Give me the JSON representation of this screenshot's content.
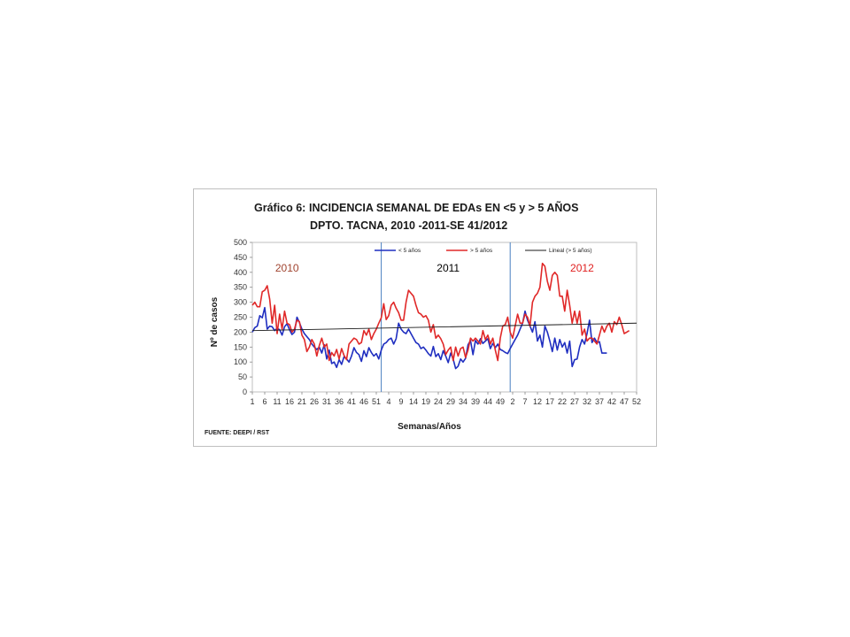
{
  "chart_data": {
    "type": "line",
    "title_prefix": "Gráfico 6:",
    "title": "INCIDENCIA SEMANAL DE EDAs EN <5 y > 5 AÑOS",
    "subtitle": "DPTO. TACNA, 2010 -2011-SE 41/2012",
    "xlabel": "Semanas/Años",
    "ylabel": "Nº de casos",
    "ylim": [
      0,
      500
    ],
    "yticks": [
      0,
      50,
      100,
      150,
      200,
      250,
      300,
      350,
      400,
      450,
      500
    ],
    "x_tick_labels": [
      "1",
      "6",
      "11",
      "16",
      "21",
      "26",
      "31",
      "36",
      "41",
      "46",
      "51",
      "4",
      "9",
      "14",
      "19",
      "24",
      "29",
      "34",
      "39",
      "44",
      "49",
      "2",
      "7",
      "12",
      "17",
      "22",
      "27",
      "32",
      "37",
      "42",
      "47",
      "52"
    ],
    "total_slots": 156,
    "year_separators_at": [
      52,
      104
    ],
    "year_labels": [
      {
        "text": "2010",
        "color": "#a0432f",
        "at_slot": 14
      },
      {
        "text": "2011",
        "color": "#000000",
        "at_slot": 79
      },
      {
        "text": "2012",
        "color": "#e02020",
        "at_slot": 133
      }
    ],
    "legend_position": "top",
    "series": [
      {
        "name": "< 5 años",
        "color": "#1f2ec0",
        "values": [
          200,
          215,
          220,
          255,
          248,
          282,
          210,
          220,
          218,
          205,
          213,
          208,
          190,
          218,
          228,
          208,
          192,
          200,
          250,
          232,
          210,
          195,
          185,
          175,
          160,
          150,
          142,
          150,
          130,
          158,
          110,
          140,
          95,
          100,
          82,
          108,
          92,
          118,
          110,
          100,
          120,
          148,
          132,
          125,
          102,
          138,
          118,
          148,
          132,
          120,
          128,
          110,
          140,
          160,
          165,
          175,
          180,
          160,
          178,
          230,
          210,
          200,
          195,
          210,
          195,
          180,
          165,
          160,
          145,
          150,
          140,
          128,
          120,
          152,
          118,
          128,
          108,
          138,
          120,
          98,
          130,
          110,
          78,
          86,
          110,
          100,
          112,
          158,
          172,
          125,
          172,
          160,
          178,
          162,
          170,
          178,
          145,
          162,
          148,
          160,
          142,
          138,
          132,
          128,
          145,
          160,
          175,
          190,
          210,
          230,
          270,
          240,
          220,
          200,
          235,
          170,
          190,
          150,
          220,
          200,
          170,
          135,
          180,
          140,
          175,
          150,
          165,
          130,
          170,
          85,
          108,
          110,
          150,
          175,
          160,
          195,
          240,
          165,
          180,
          165,
          168,
          130,
          130,
          130
        ]
      },
      {
        "name": "> 5 años",
        "color": "#e02828",
        "values": [
          290,
          300,
          285,
          285,
          335,
          340,
          355,
          310,
          230,
          290,
          195,
          260,
          210,
          270,
          230,
          225,
          200,
          210,
          240,
          235,
          190,
          175,
          135,
          150,
          175,
          160,
          120,
          155,
          180,
          150,
          160,
          105,
          132,
          120,
          142,
          110,
          145,
          122,
          108,
          160,
          170,
          180,
          175,
          160,
          165,
          205,
          190,
          210,
          175,
          195,
          210,
          230,
          248,
          295,
          242,
          255,
          290,
          300,
          280,
          265,
          240,
          240,
          300,
          340,
          330,
          320,
          290,
          265,
          260,
          250,
          255,
          240,
          200,
          225,
          180,
          190,
          178,
          160,
          125,
          140,
          150,
          105,
          150,
          120,
          145,
          150,
          115,
          140,
          180,
          170,
          180,
          170,
          160,
          205,
          175,
          190,
          160,
          180,
          140,
          105,
          180,
          220,
          225,
          250,
          200,
          180,
          220,
          260,
          230,
          230,
          260,
          250,
          220,
          300,
          320,
          330,
          350,
          430,
          420,
          370,
          340,
          390,
          400,
          390,
          320,
          320,
          270,
          340,
          290,
          230,
          270,
          230,
          270,
          190,
          210,
          170,
          180,
          180,
          170,
          160,
          190,
          220,
          200,
          220,
          230,
          200,
          235,
          225,
          250,
          225,
          195,
          200,
          205
        ]
      },
      {
        "name": "Lineal (> 5 años)",
        "color": "#1a1a1a",
        "values": [
          205,
          230
        ],
        "trend": true
      }
    ],
    "source": "FUENTE: DEEPI  / RST"
  }
}
